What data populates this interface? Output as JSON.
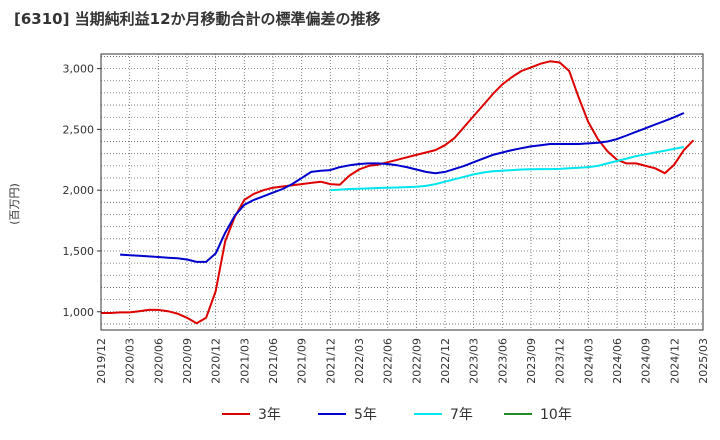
{
  "title": "[6310]  当期純利益12か月移動合計の標準偏差の推移",
  "chart_data": {
    "type": "line",
    "title": "[6310]  当期純利益12か月移動合計の標準偏差の推移",
    "ylabel": "(百万円)",
    "xlabel": "",
    "ylim": [
      850,
      3120
    ],
    "y_ticks": [
      1000,
      1500,
      2000,
      2500,
      3000
    ],
    "y_tick_labels": [
      "1,000",
      "1,500",
      "2,000",
      "2,500",
      "3,000"
    ],
    "x_tick_labels": [
      "2019/12",
      "2020/03",
      "2020/06",
      "2020/09",
      "2020/12",
      "2021/03",
      "2021/06",
      "2021/09",
      "2021/12",
      "2022/03",
      "2022/06",
      "2022/09",
      "2022/12",
      "2023/03",
      "2023/06",
      "2023/09",
      "2023/12",
      "2024/03",
      "2024/06",
      "2024/09",
      "2024/12",
      "2025/03"
    ],
    "x_range_months": [
      0,
      63
    ],
    "legend": [
      "3年",
      "5年",
      "7年",
      "10年"
    ],
    "series": [
      {
        "name": "3年",
        "color": "#dd0000",
        "start_month": 0,
        "values": [
          990,
          990,
          995,
          995,
          1005,
          1015,
          1015,
          1005,
          985,
          950,
          905,
          950,
          1170,
          1580,
          1780,
          1920,
          1970,
          2000,
          2020,
          2030,
          2040,
          2050,
          2060,
          2070,
          2050,
          2045,
          2120,
          2170,
          2200,
          2210,
          2230,
          2250,
          2270,
          2290,
          2310,
          2330,
          2370,
          2430,
          2520,
          2610,
          2700,
          2790,
          2870,
          2930,
          2980,
          3010,
          3040,
          3060,
          3050,
          2980,
          2760,
          2560,
          2420,
          2320,
          2250,
          2220,
          2220,
          2200,
          2180,
          2140,
          2210,
          2330,
          2410
        ]
      },
      {
        "name": "5年",
        "color": "#0000cc",
        "start_month": 2,
        "values": [
          1470,
          1465,
          1460,
          1455,
          1450,
          1445,
          1440,
          1430,
          1410,
          1410,
          1480,
          1650,
          1790,
          1880,
          1920,
          1950,
          1980,
          2010,
          2050,
          2100,
          2150,
          2160,
          2165,
          2190,
          2205,
          2215,
          2220,
          2220,
          2215,
          2205,
          2190,
          2170,
          2150,
          2140,
          2150,
          2175,
          2200,
          2230,
          2260,
          2290,
          2310,
          2330,
          2345,
          2360,
          2370,
          2380,
          2380,
          2380,
          2380,
          2385,
          2390,
          2400,
          2420,
          2450,
          2480,
          2510,
          2540,
          2570,
          2600,
          2635
        ]
      },
      {
        "name": "7年",
        "color": "#00e5ee",
        "start_month": 24,
        "values": [
          2000,
          2005,
          2010,
          2012,
          2015,
          2018,
          2020,
          2022,
          2025,
          2028,
          2035,
          2050,
          2070,
          2090,
          2110,
          2130,
          2145,
          2155,
          2160,
          2165,
          2170,
          2172,
          2173,
          2173,
          2175,
          2180,
          2185,
          2190,
          2200,
          2220,
          2240,
          2260,
          2280,
          2295,
          2310,
          2325,
          2340,
          2355
        ]
      },
      {
        "name": "10年",
        "color": "#228b22",
        "start_month": 0,
        "values": []
      }
    ]
  }
}
